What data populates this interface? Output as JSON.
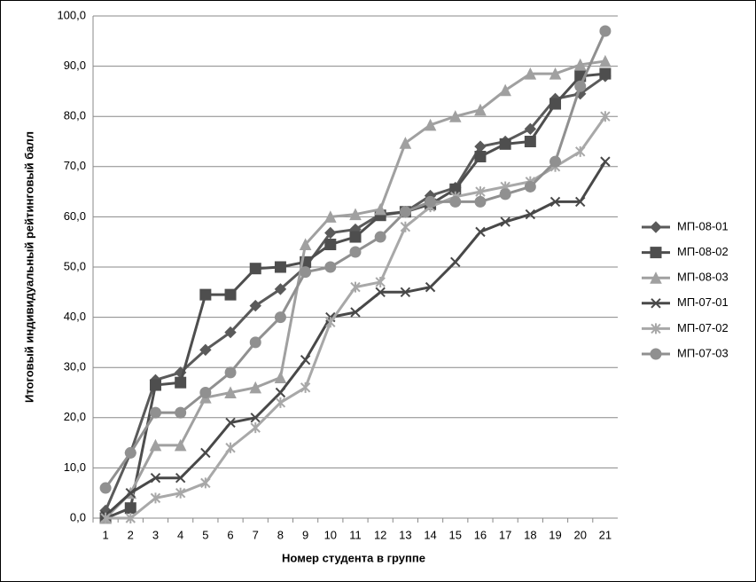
{
  "chart_data": {
    "type": "line",
    "x_label": "Номер студента в группе",
    "y_label": "Итоговый индивидуальный рейтинговый балл",
    "categories": [
      "1",
      "2",
      "3",
      "4",
      "5",
      "6",
      "7",
      "8",
      "9",
      "10",
      "11",
      "12",
      "13",
      "14",
      "15",
      "16",
      "17",
      "18",
      "19",
      "20",
      "21"
    ],
    "ylim": [
      0,
      100
    ],
    "yticks": [
      {
        "value": 0,
        "label": "0,0"
      },
      {
        "value": 10,
        "label": "10,0"
      },
      {
        "value": 20,
        "label": "20,0"
      },
      {
        "value": 30,
        "label": "30,0"
      },
      {
        "value": 40,
        "label": "40,0"
      },
      {
        "value": 50,
        "label": "50,0"
      },
      {
        "value": 60,
        "label": "60,0"
      },
      {
        "value": 70,
        "label": "70,0"
      },
      {
        "value": 80,
        "label": "80,0"
      },
      {
        "value": 90,
        "label": "90,0"
      },
      {
        "value": 100,
        "label": "100,0"
      }
    ],
    "grid": true,
    "legend": "right",
    "series": [
      {
        "name": "МП-08-01",
        "color": "#5a5a5a",
        "marker": "diamond",
        "values": [
          1.5,
          13,
          27.5,
          29,
          33.5,
          37,
          42.3,
          45.6,
          50,
          56.8,
          57.5,
          60.5,
          61,
          64.2,
          65.8,
          74,
          75,
          77.5,
          83.5,
          84.5,
          88
        ]
      },
      {
        "name": "МП-08-02",
        "color": "#4e4e4e",
        "marker": "square",
        "values": [
          0,
          2,
          26.5,
          27,
          44.5,
          44.5,
          49.7,
          50,
          51,
          54.5,
          56,
          60.3,
          61,
          62.5,
          65.5,
          72,
          74.5,
          75,
          82.5,
          88,
          88.5
        ]
      },
      {
        "name": "МП-08-03",
        "color": "#a0a0a0",
        "marker": "triangle",
        "values": [
          0,
          5,
          14.5,
          14.5,
          24,
          25,
          26,
          28,
          54.5,
          60,
          60.5,
          61.5,
          74.7,
          78.3,
          80,
          81.3,
          85.2,
          88.5,
          88.5,
          90.3,
          91
        ]
      },
      {
        "name": "МП-07-01",
        "color": "#484848",
        "marker": "x",
        "values": [
          0.5,
          5,
          8,
          8,
          13,
          19,
          20,
          25,
          31.5,
          40,
          41,
          45,
          45,
          46,
          51,
          57,
          59,
          60.5,
          63,
          63,
          71
        ]
      },
      {
        "name": "МП-07-02",
        "color": "#a8a8a8",
        "marker": "star",
        "values": [
          0,
          0,
          4,
          5,
          7,
          14,
          18,
          23,
          26,
          39,
          46,
          47,
          58,
          62,
          64,
          65,
          66,
          67,
          70,
          73,
          80
        ]
      },
      {
        "name": "МП-07-03",
        "color": "#909090",
        "marker": "circle",
        "values": [
          6,
          13,
          21,
          21,
          25,
          29,
          35,
          40,
          49,
          50,
          53,
          56,
          61,
          63,
          63,
          63,
          64.5,
          66,
          71,
          86,
          97
        ]
      }
    ]
  }
}
